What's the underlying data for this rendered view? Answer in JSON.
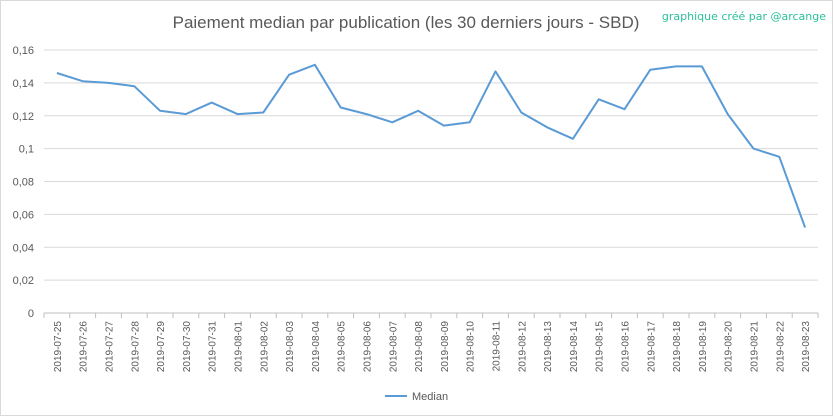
{
  "title": "Paiement median par publication (les 30 derniers jours - SBD)",
  "credit": "graphique créé par @arcange",
  "chart_data": {
    "type": "line",
    "title": "Paiement median par publication (les 30 derniers jours - SBD)",
    "xlabel": "",
    "ylabel": "",
    "ylim": [
      0,
      0.16
    ],
    "yticks": [
      "0",
      "0,02",
      "0,04",
      "0,06",
      "0,08",
      "0,1",
      "0,12",
      "0,14",
      "0,16"
    ],
    "grid": true,
    "legend_position": "bottom",
    "categories": [
      "2019-07-25",
      "2019-07-26",
      "2019-07-27",
      "2019-07-28",
      "2019-07-29",
      "2019-07-30",
      "2019-07-31",
      "2019-08-01",
      "2019-08-02",
      "2019-08-03",
      "2019-08-04",
      "2019-08-05",
      "2019-08-06",
      "2019-08-07",
      "2019-08-08",
      "2019-08-09",
      "2019-08-10",
      "2019-08-11",
      "2019-08-12",
      "2019-08-13",
      "2019-08-14",
      "2019-08-15",
      "2019-08-16",
      "2019-08-17",
      "2019-08-18",
      "2019-08-19",
      "2019-08-20",
      "2019-08-21",
      "2019-08-22",
      "2019-08-23"
    ],
    "series": [
      {
        "name": "Median",
        "color": "#5b9bd5",
        "values": [
          0.146,
          0.141,
          0.14,
          0.138,
          0.123,
          0.121,
          0.128,
          0.121,
          0.122,
          0.145,
          0.151,
          0.125,
          0.121,
          0.116,
          0.123,
          0.114,
          0.116,
          0.147,
          0.122,
          0.113,
          0.106,
          0.13,
          0.124,
          0.148,
          0.15,
          0.15,
          0.121,
          0.1,
          0.095,
          0.052
        ]
      }
    ]
  }
}
